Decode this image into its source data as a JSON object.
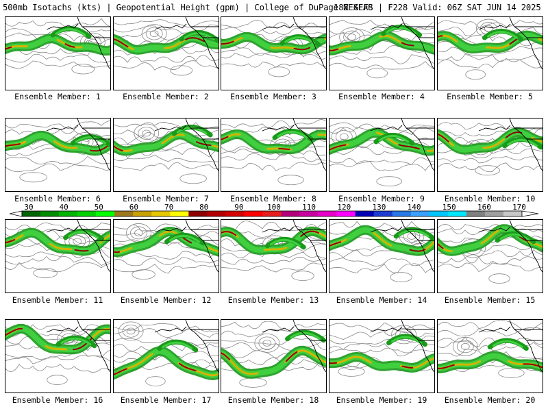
{
  "header": {
    "product": "500mb Isotachs (kts) | Geopotential Height (gpm) | College of DuPage NEXLAB",
    "run": "18Z GEFS | F228 Valid: 06Z SAT JUN 14 2025"
  },
  "legend": {
    "labels": [
      "30",
      "40",
      "50",
      "60",
      "70",
      "80",
      "90",
      "100",
      "110",
      "120",
      "130",
      "140",
      "150",
      "160",
      "170"
    ],
    "colors": [
      "#006400",
      "#008c00",
      "#00b400",
      "#00d200",
      "#00ff00",
      "#9b7820",
      "#c8a000",
      "#e6c800",
      "#ffff00",
      "#8c0000",
      "#b40000",
      "#d20000",
      "#ff0000",
      "#e61e1e",
      "#b4007a",
      "#c800a0",
      "#e600c8",
      "#ff00ff",
      "#0000b4",
      "#1e3cd2",
      "#2878e6",
      "#3ca0ff",
      "#00c8ff",
      "#00e6ff",
      "#808080",
      "#a0a0a0",
      "#c8c8c8"
    ]
  },
  "members": [
    {
      "label": "Ensemble Member: 1"
    },
    {
      "label": "Ensemble Member: 2"
    },
    {
      "label": "Ensemble Member: 3"
    },
    {
      "label": "Ensemble Member: 4"
    },
    {
      "label": "Ensemble Member: 5"
    },
    {
      "label": "Ensemble Member: 6"
    },
    {
      "label": "Ensemble Member: 7"
    },
    {
      "label": "Ensemble Member: 8"
    },
    {
      "label": "Ensemble Member: 9"
    },
    {
      "label": "Ensemble Member: 10"
    },
    {
      "label": "Ensemble Member: 11"
    },
    {
      "label": "Ensemble Member: 12"
    },
    {
      "label": "Ensemble Member: 13"
    },
    {
      "label": "Ensemble Member: 14"
    },
    {
      "label": "Ensemble Member: 15"
    },
    {
      "label": "Ensemble Member: 16"
    },
    {
      "label": "Ensemble Member: 17"
    },
    {
      "label": "Ensemble Member: 18"
    },
    {
      "label": "Ensemble Member: 19"
    },
    {
      "label": "Ensemble Member: 20"
    }
  ],
  "colors": {
    "jet_low": "#1a9a1a",
    "jet_mid": "#3fcf3f",
    "jet_high": "#d4b400",
    "jet_max": "#8c0000",
    "height_contour": "#888888",
    "coastline": "#000000"
  }
}
